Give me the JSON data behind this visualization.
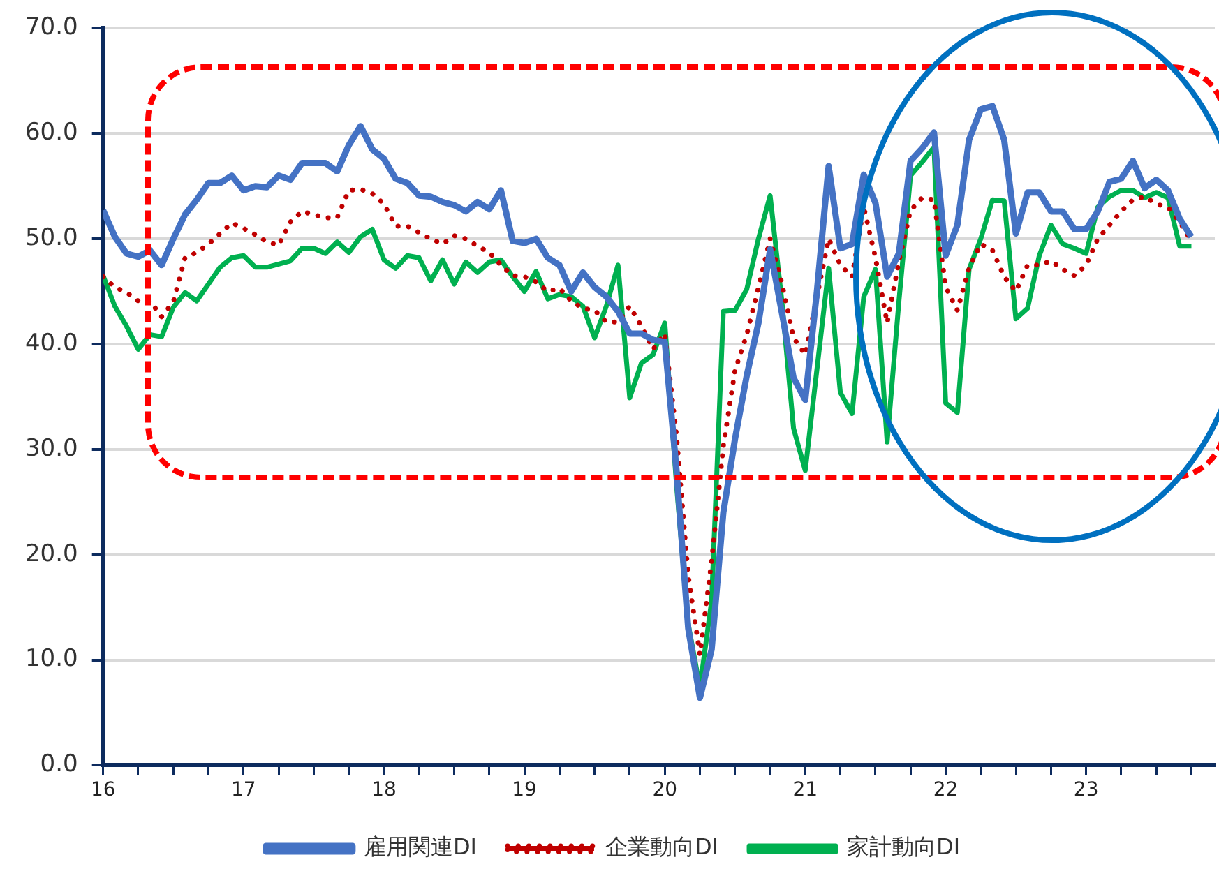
{
  "chart_data": {
    "type": "line",
    "x": [
      "2016-01",
      "2016-02",
      "2016-03",
      "2016-04",
      "2016-05",
      "2016-06",
      "2016-07",
      "2016-08",
      "2016-09",
      "2016-10",
      "2016-11",
      "2016-12",
      "2017-01",
      "2017-02",
      "2017-03",
      "2017-04",
      "2017-05",
      "2017-06",
      "2017-07",
      "2017-08",
      "2017-09",
      "2017-10",
      "2017-11",
      "2017-12",
      "2018-01",
      "2018-02",
      "2018-03",
      "2018-04",
      "2018-05",
      "2018-06",
      "2018-07",
      "2018-08",
      "2018-09",
      "2018-10",
      "2018-11",
      "2018-12",
      "2019-01",
      "2019-02",
      "2019-03",
      "2019-04",
      "2019-05",
      "2019-06",
      "2019-07",
      "2019-08",
      "2019-09",
      "2019-10",
      "2019-11",
      "2019-12",
      "2020-01",
      "2020-02",
      "2020-03",
      "2020-04",
      "2020-05",
      "2020-06",
      "2020-07",
      "2020-08",
      "2020-09",
      "2020-10",
      "2020-11",
      "2020-12",
      "2021-01",
      "2021-02",
      "2021-03",
      "2021-04",
      "2021-05",
      "2021-06",
      "2021-07",
      "2021-08",
      "2021-09",
      "2021-10",
      "2021-11",
      "2021-12",
      "2022-01",
      "2022-02",
      "2022-03",
      "2022-04",
      "2022-05",
      "2022-06",
      "2022-07",
      "2022-08",
      "2022-09",
      "2022-10",
      "2022-11",
      "2022-12",
      "2023-01",
      "2023-02",
      "2023-03",
      "2023-04",
      "2023-05",
      "2023-06",
      "2023-07",
      "2023-08",
      "2023-09",
      "2023-10"
    ],
    "series": [
      {
        "name": "雇用関連DI",
        "color": "#4472c4",
        "line_style": "solid",
        "values": [
          52.7,
          50.2,
          48.6,
          48.3,
          48.9,
          47.5,
          50.0,
          52.3,
          53.7,
          55.3,
          55.3,
          56.0,
          54.6,
          55.0,
          54.9,
          56.0,
          55.6,
          57.2,
          57.2,
          57.2,
          56.4,
          58.9,
          60.7,
          58.5,
          57.6,
          55.7,
          55.3,
          54.1,
          54.0,
          53.5,
          53.2,
          52.6,
          53.5,
          52.8,
          54.6,
          49.8,
          49.6,
          50.0,
          48.2,
          47.5,
          45.0,
          46.8,
          45.4,
          44.5,
          43.1,
          41.0,
          41.0,
          40.4,
          40.2,
          28.0,
          13.0,
          6.4,
          11.0,
          24.0,
          31.0,
          37.0,
          42.0,
          49.0,
          43.0,
          36.8,
          34.7,
          45.0,
          56.9,
          49.1,
          49.5,
          56.1,
          53.4,
          46.4,
          48.6,
          57.4,
          58.6,
          60.1,
          48.4,
          51.3,
          59.4,
          62.3,
          62.6,
          59.4,
          50.5,
          54.4,
          54.4,
          52.6,
          52.6,
          50.9,
          50.9,
          52.6,
          55.4,
          55.7,
          57.4,
          54.8,
          55.6,
          54.6,
          51.9,
          50.2
        ]
      },
      {
        "name": "企業動向DI",
        "color": "#c00000",
        "line_style": "dotted",
        "values": [
          46.4,
          45.4,
          44.9,
          44.1,
          44.1,
          42.6,
          44.0,
          48.2,
          48.7,
          49.5,
          50.5,
          51.5,
          51.0,
          50.4,
          49.7,
          49.4,
          51.6,
          52.6,
          52.3,
          52.0,
          52.0,
          54.6,
          54.7,
          54.3,
          53.3,
          51.2,
          51.2,
          50.6,
          50.0,
          49.5,
          50.3,
          50.0,
          49.3,
          48.7,
          47.5,
          46.5,
          46.4,
          45.9,
          45.0,
          45.3,
          44.1,
          43.4,
          43.2,
          42.1,
          42.1,
          43.6,
          41.7,
          39.5,
          41.0,
          31.3,
          18.0,
          10.5,
          19.4,
          30.3,
          37.5,
          40.9,
          45.4,
          50.0,
          45.8,
          40.6,
          39.0,
          44.5,
          50.0,
          47.5,
          46.4,
          53.0,
          48.2,
          42.0,
          47.8,
          52.7,
          53.9,
          53.7,
          45.4,
          43.2,
          47.2,
          49.5,
          48.9,
          46.4,
          45.0,
          47.5,
          47.5,
          47.9,
          47.1,
          46.5,
          47.5,
          50.0,
          51.3,
          52.6,
          53.7,
          54.0,
          53.3,
          53.0,
          51.6,
          49.8
        ]
      },
      {
        "name": "家計動向DI",
        "color": "#00b050",
        "line_style": "solid",
        "values": [
          46.5,
          43.6,
          41.7,
          39.5,
          40.9,
          40.7,
          43.5,
          44.9,
          44.1,
          45.7,
          47.3,
          48.2,
          48.4,
          47.3,
          47.3,
          47.6,
          47.9,
          49.1,
          49.1,
          48.6,
          49.7,
          48.7,
          50.2,
          50.9,
          48.0,
          47.2,
          48.4,
          48.2,
          46.0,
          48.0,
          45.7,
          47.8,
          46.8,
          47.8,
          48.0,
          46.4,
          45.0,
          46.9,
          44.3,
          44.7,
          44.5,
          43.6,
          40.6,
          43.6,
          47.5,
          34.9,
          38.2,
          39.0,
          42.0,
          26.6,
          13.4,
          7.4,
          15.6,
          43.1,
          43.2,
          45.2,
          50.0,
          54.1,
          44.1,
          32.0,
          28.0,
          37.6,
          47.2,
          35.4,
          33.4,
          44.5,
          47.1,
          30.7,
          44.0,
          56.0,
          57.3,
          58.7,
          34.4,
          33.5,
          47.1,
          50.0,
          53.7,
          53.6,
          42.4,
          43.4,
          48.4,
          51.3,
          49.5,
          49.1,
          48.6,
          53.0,
          54.0,
          54.6,
          54.6,
          53.9,
          54.4,
          53.9,
          49.3,
          49.3
        ]
      }
    ],
    "xlim": [
      "2016-01",
      "2023-12"
    ],
    "xticks": [
      {
        "value": "2016-01",
        "label": "16"
      },
      {
        "value": "2016-04",
        "label": null
      },
      {
        "value": "2016-07",
        "label": null
      },
      {
        "value": "2016-10",
        "label": null
      },
      {
        "value": "2017-01",
        "label": "17"
      },
      {
        "value": "2017-04",
        "label": null
      },
      {
        "value": "2017-07",
        "label": null
      },
      {
        "value": "2017-10",
        "label": null
      },
      {
        "value": "2018-01",
        "label": "18"
      },
      {
        "value": "2018-04",
        "label": null
      },
      {
        "value": "2018-07",
        "label": null
      },
      {
        "value": "2018-10",
        "label": null
      },
      {
        "value": "2019-01",
        "label": "19"
      },
      {
        "value": "2019-04",
        "label": null
      },
      {
        "value": "2019-07",
        "label": null
      },
      {
        "value": "2019-10",
        "label": null
      },
      {
        "value": "2020-01",
        "label": "20"
      },
      {
        "value": "2020-04",
        "label": null
      },
      {
        "value": "2020-07",
        "label": null
      },
      {
        "value": "2020-10",
        "label": null
      },
      {
        "value": "2021-01",
        "label": "21"
      },
      {
        "value": "2021-04",
        "label": null
      },
      {
        "value": "2021-07",
        "label": null
      },
      {
        "value": "2021-10",
        "label": null
      },
      {
        "value": "2022-01",
        "label": "22"
      },
      {
        "value": "2022-04",
        "label": null
      },
      {
        "value": "2022-07",
        "label": null
      },
      {
        "value": "2022-10",
        "label": null
      },
      {
        "value": "2023-01",
        "label": "23"
      },
      {
        "value": "2023-04",
        "label": null
      },
      {
        "value": "2023-07",
        "label": null
      },
      {
        "value": "2023-10",
        "label": null
      }
    ],
    "ylim": [
      0,
      70
    ],
    "yticks": [
      {
        "value": 0,
        "label": "0.0"
      },
      {
        "value": 10,
        "label": "10.0"
      },
      {
        "value": 20,
        "label": "20.0"
      },
      {
        "value": 30,
        "label": "30.0"
      },
      {
        "value": 40,
        "label": "40.0"
      },
      {
        "value": 50,
        "label": "50.0"
      },
      {
        "value": 60,
        "label": "60.0"
      },
      {
        "value": 70,
        "label": "70.0"
      }
    ],
    "grid": "y",
    "legend": "bottom",
    "marker": "none"
  }
}
